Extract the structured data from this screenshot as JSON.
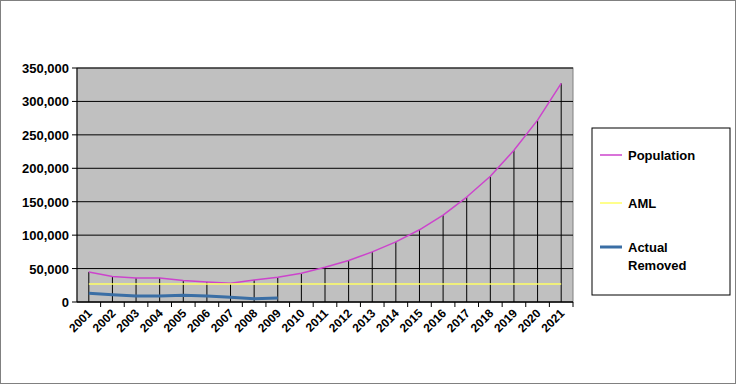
{
  "chart_data": {
    "type": "line",
    "categories": [
      "2001",
      "2002",
      "2003",
      "2004",
      "2005",
      "2006",
      "2007",
      "2008",
      "2009",
      "2010",
      "2011",
      "2012",
      "2013",
      "2014",
      "2015",
      "2016",
      "2017",
      "2018",
      "2019",
      "2020",
      "2021"
    ],
    "series": [
      {
        "name": "Population",
        "color": "#cc44cc",
        "values": [
          45000,
          38000,
          36000,
          36000,
          32000,
          30000,
          28000,
          33000,
          37000,
          43000,
          52000,
          62000,
          75000,
          90000,
          108000,
          130000,
          157000,
          188000,
          227000,
          272000,
          327000
        ]
      },
      {
        "name": "AML",
        "color": "#ffff66",
        "values": [
          27000,
          27000,
          27000,
          27000,
          27000,
          27000,
          27000,
          27000,
          27000,
          27000,
          27000,
          27000,
          27000,
          27000,
          27000,
          27000,
          27000,
          27000,
          27000,
          27000,
          27000
        ]
      },
      {
        "name": "Actual Removed",
        "color": "#3a6ea5",
        "values": [
          13000,
          11000,
          9000,
          9000,
          10000,
          9000,
          7000,
          5000,
          6000,
          null,
          null,
          null,
          null,
          null,
          null,
          null,
          null,
          null,
          null,
          null,
          null
        ]
      }
    ],
    "ylim": [
      0,
      350000
    ],
    "yticks": [
      0,
      {
        "value": 50000,
        "label": "50,000"
      },
      {
        "value": 100000,
        "label": "100,000"
      },
      {
        "value": 150000,
        "label": "150,000"
      },
      {
        "value": 200000,
        "label": "200,000"
      },
      {
        "value": 250000,
        "label": "250,000"
      },
      {
        "value": 300000,
        "label": "300,000"
      },
      {
        "value": 350000,
        "label": "350,000"
      }
    ],
    "grid": true,
    "legend": "right"
  }
}
